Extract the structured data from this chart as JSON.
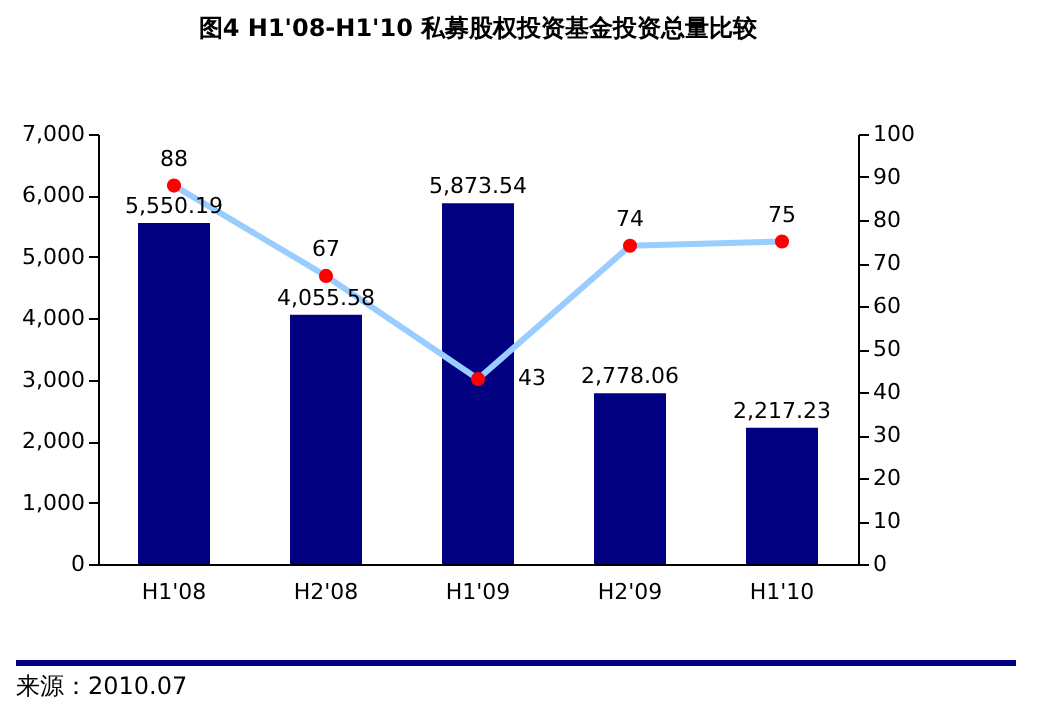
{
  "chart_data": {
    "type": "bar",
    "title": "图4  H1'08-H1'10 私募股权投资基金投资总量比较",
    "categories": [
      "H1'08",
      "H2'08",
      "H1'09",
      "H2'09",
      "H1'10"
    ],
    "series": [
      {
        "color": "#000080",
        "values": [
          5550.19,
          4055.58,
          5873.54,
          2778.06,
          2217.23
        ],
        "value_labels": [
          "5,550.19",
          "4,055.58",
          "5,873.54",
          "2,778.06",
          "2,217.23"
        ]
      },
      {
        "type": "line",
        "axis": "y2",
        "color": "#99ccff",
        "colors": [
          "#ff0000",
          "#ff0000",
          "#ff0000",
          "#ff0000",
          "#ff0000"
        ],
        "values": [
          88,
          67,
          43,
          74,
          75
        ],
        "value_labels": [
          "88",
          "67",
          "43",
          "74",
          "75"
        ]
      }
    ],
    "ylim": [
      0,
      7000
    ],
    "yticks": [
      0,
      {
        "value": 1000,
        "label": "1,000"
      },
      {
        "value": 2000,
        "label": "2,000"
      },
      {
        "value": 3000,
        "label": "3,000"
      },
      {
        "value": 4000,
        "label": "4,000"
      },
      {
        "value": 5000,
        "label": "5,000"
      },
      {
        "value": 6000,
        "label": "6,000"
      },
      {
        "value": 7000,
        "label": "7,000"
      }
    ],
    "y2lim": [
      0,
      100
    ],
    "y2ticks": [
      0,
      10,
      20,
      30,
      40,
      50,
      60,
      70,
      80,
      90,
      100
    ],
    "marker": "circle",
    "line_style": "solid",
    "grid": false,
    "annotations": [
      "来源：2010.07"
    ]
  }
}
